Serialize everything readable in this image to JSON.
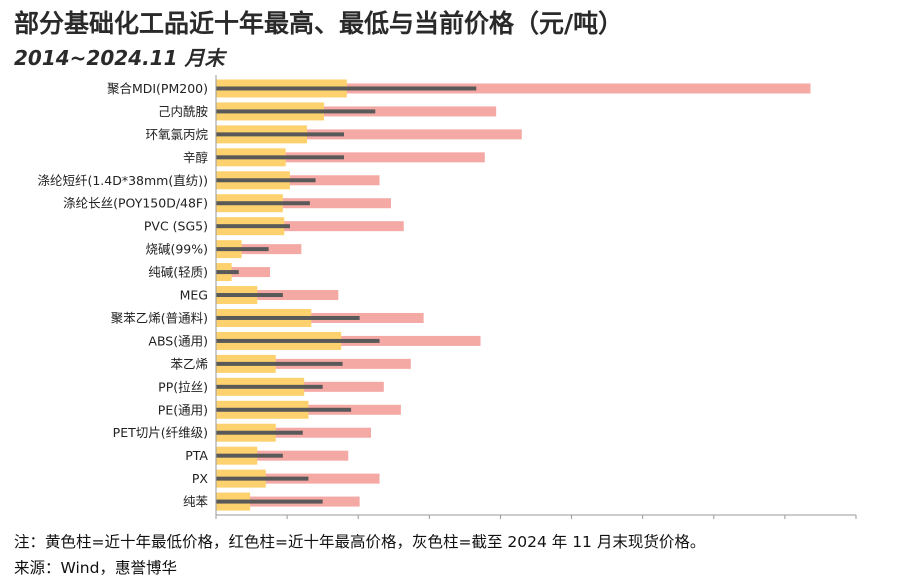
{
  "title": "部分基础化工品近十年最高、最低与当前价格（元/吨）",
  "subtitle": "2014~2024.11 月末",
  "notes": {
    "legend_note": "注：黄色柱=近十年最低价格，红色柱=近十年最高价格，灰色柱=截至 2024 年 11 月末现货价格。",
    "source": "来源：Wind，惠誉博华"
  },
  "colors": {
    "min_bar": "#fdd26e",
    "max_bar": "#f4a9a4",
    "current_bar": "#595959",
    "axis": "#999999"
  },
  "chart_data": {
    "type": "bar",
    "orientation": "horizontal",
    "categories": [
      "聚合MDI(PM200)",
      "己内酰胺",
      "环氧氯丙烷",
      "辛醇",
      "涤纶短纤(1.4D*38mm(直纺))",
      "涤纶长丝(POY150D/48F)",
      "PVC (SG5)",
      "烧碱(99%)",
      "纯碱(轻质)",
      "MEG",
      "聚苯乙烯(普通料)",
      "ABS(通用)",
      "苯乙烯",
      "PP(拉丝)",
      "PE(通用)",
      "PET切片(纤维级)",
      "PTA",
      "PX",
      "纯苯"
    ],
    "series": [
      {
        "key": "max",
        "values": [
          41800,
          19700,
          21500,
          18900,
          11500,
          12300,
          13200,
          6000,
          3800,
          8600,
          14600,
          18600,
          13700,
          11800,
          13000,
          10900,
          9300,
          11500,
          10100
        ]
      },
      {
        "key": "min",
        "values": [
          9200,
          7600,
          6400,
          4900,
          5200,
          4700,
          4800,
          1800,
          1100,
          2900,
          6700,
          8800,
          4200,
          6200,
          6500,
          4200,
          2900,
          3500,
          2400
        ]
      },
      {
        "key": "current",
        "values": [
          18300,
          11200,
          9000,
          9000,
          7000,
          6600,
          5200,
          3700,
          1600,
          4700,
          10100,
          11500,
          8900,
          7500,
          9500,
          6100,
          4700,
          6500,
          7500
        ]
      }
    ],
    "xlim": [
      0,
      45000
    ],
    "xticks": [
      "0",
      "5000",
      "10000",
      "15000",
      "20000",
      "25000",
      "30000",
      "35000",
      "40000",
      "45000"
    ],
    "grid": false,
    "legend": "none"
  }
}
